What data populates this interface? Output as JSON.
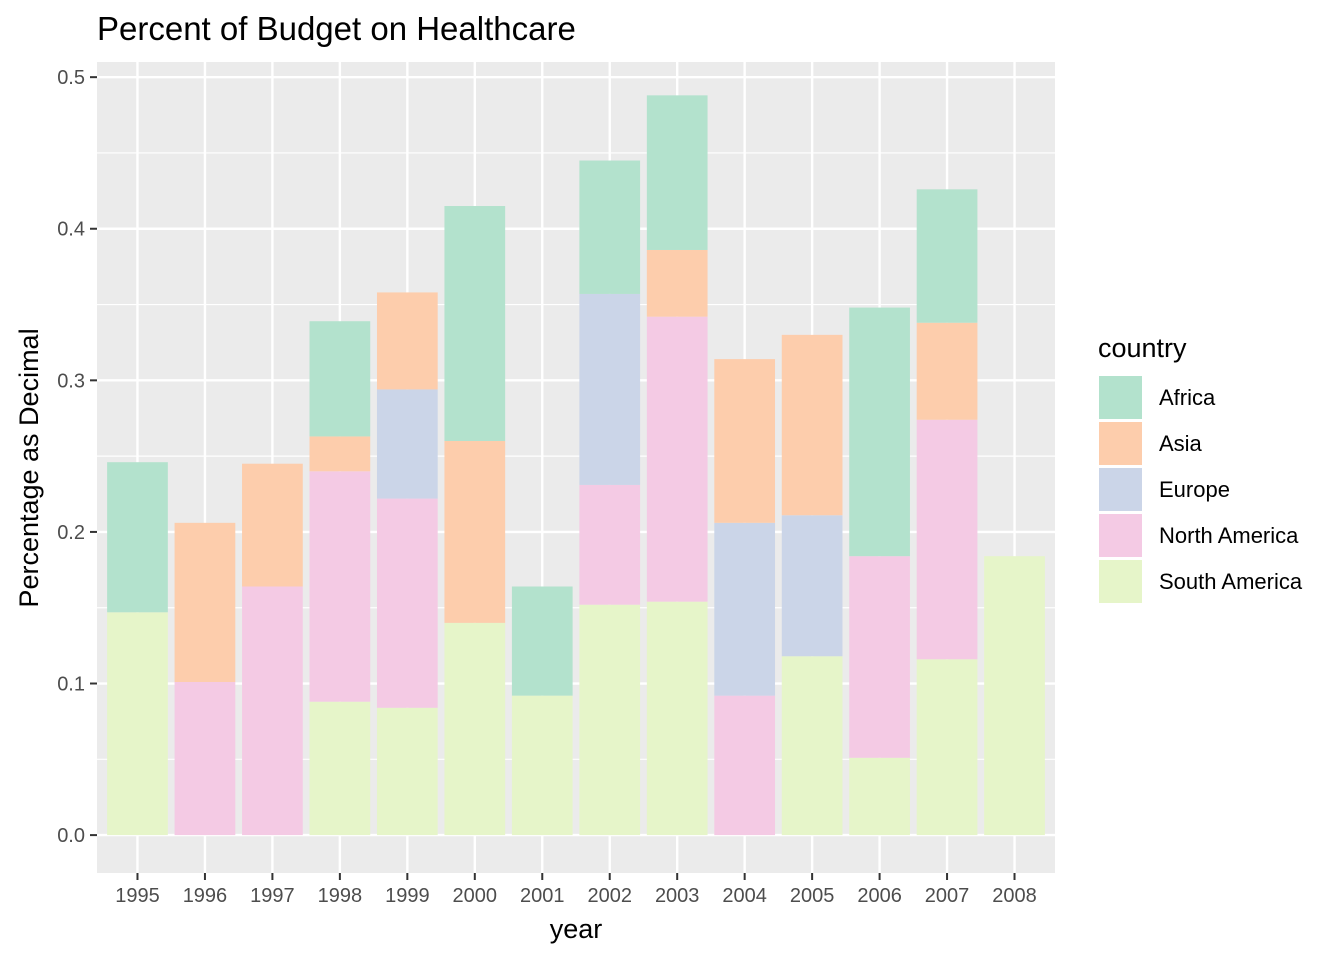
{
  "chart_data": {
    "type": "bar",
    "stacked": true,
    "title": "Percent of Budget on Healthcare",
    "xlabel": "year",
    "ylabel": "Percentage as Decimal",
    "ylim": [
      -0.025,
      0.51
    ],
    "yticks": [
      0.0,
      0.1,
      0.2,
      0.3,
      0.4,
      0.5
    ],
    "ytick_labels": [
      "0.0",
      "0.1",
      "0.2",
      "0.3",
      "0.4",
      "0.5"
    ],
    "grid": true,
    "legend_title": "country",
    "legend_position": "right",
    "categories": [
      "1995",
      "1996",
      "1997",
      "1998",
      "1999",
      "2000",
      "2001",
      "2002",
      "2003",
      "2004",
      "2005",
      "2006",
      "2007",
      "2008"
    ],
    "series": [
      {
        "name": "South America",
        "color": "#E6F5C9",
        "values": [
          0.147,
          0.0,
          0.0,
          0.088,
          0.084,
          0.14,
          0.092,
          0.152,
          0.154,
          0.0,
          0.118,
          0.051,
          0.116,
          0.184
        ]
      },
      {
        "name": "North America",
        "color": "#F4CAE4",
        "values": [
          0.0,
          0.101,
          0.164,
          0.152,
          0.138,
          0.0,
          0.0,
          0.079,
          0.188,
          0.092,
          0.0,
          0.133,
          0.158,
          0.0
        ]
      },
      {
        "name": "Europe",
        "color": "#CBD5E8",
        "values": [
          0.0,
          0.0,
          0.0,
          0.0,
          0.072,
          0.0,
          0.0,
          0.126,
          0.0,
          0.114,
          0.093,
          0.0,
          0.0,
          0.0
        ]
      },
      {
        "name": "Asia",
        "color": "#FDCDAC",
        "values": [
          0.0,
          0.105,
          0.081,
          0.023,
          0.064,
          0.12,
          0.0,
          0.0,
          0.044,
          0.108,
          0.119,
          0.0,
          0.064,
          0.0
        ]
      },
      {
        "name": "Africa",
        "color": "#B3E2CD",
        "values": [
          0.099,
          0.0,
          0.0,
          0.076,
          0.0,
          0.155,
          0.072,
          0.088,
          0.102,
          0.0,
          0.0,
          0.164,
          0.088,
          0.0
        ]
      }
    ],
    "legend_order": [
      "Africa",
      "Asia",
      "Europe",
      "North America",
      "South America"
    ],
    "colors": {
      "panel": "#EBEBEB",
      "grid": "#FFFFFF"
    }
  }
}
